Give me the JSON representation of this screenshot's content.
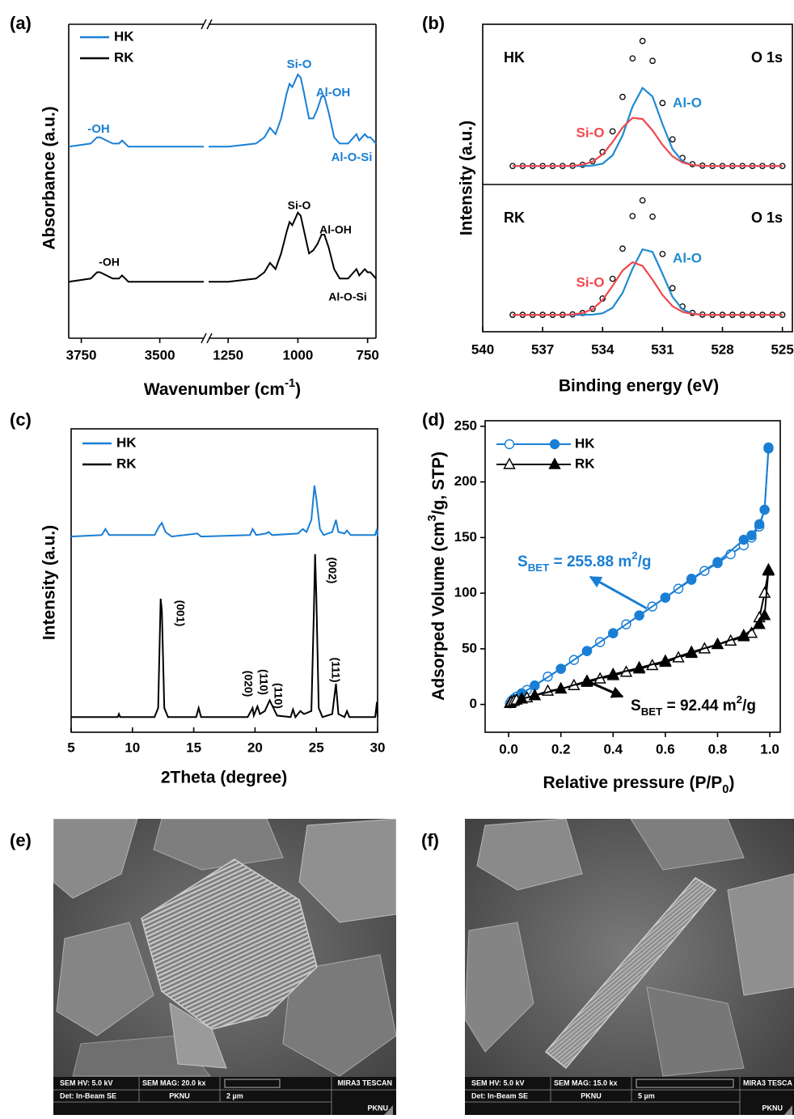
{
  "chart_data": [
    {
      "type": "spectrum",
      "panel_label": "(a)",
      "x_label": [
        {
          "text": "Wavenumber (cm"
        },
        {
          "sup": "-1"
        },
        {
          "text": ")"
        }
      ],
      "y_label": "Absorbance (a.u.)",
      "x_segments": [
        [
          3790,
          3360
        ],
        [
          1320,
          720
        ]
      ],
      "xticks": [
        3750,
        3500,
        1250,
        1000,
        750
      ],
      "ylim": [
        0,
        100
      ],
      "legend": "upper left",
      "x": [
        3790,
        3720,
        3700,
        3690,
        3670,
        3650,
        3630,
        3620,
        3610,
        3600,
        3550,
        3500,
        3450,
        3400,
        3360,
        1320,
        1250,
        1150,
        1120,
        1100,
        1080,
        1060,
        1040,
        1030,
        1020,
        1010,
        1000,
        990,
        980,
        960,
        945,
        930,
        915,
        905,
        890,
        870,
        850,
        820,
        800,
        790,
        780,
        760,
        750,
        740,
        720
      ],
      "series": [
        {
          "name": "HK",
          "color": "#1a7fd4",
          "annotations": [
            "-OH",
            "Si-O",
            "Al-OH",
            "Al-O-Si"
          ],
          "values": [
            61,
            62,
            64,
            64,
            63,
            62,
            62,
            63,
            62,
            61,
            61,
            61,
            61,
            61,
            61,
            61,
            61,
            62,
            64,
            67,
            65,
            70,
            78,
            81,
            80,
            82,
            84,
            83,
            79,
            70,
            70,
            73,
            77,
            77,
            72,
            64,
            62,
            62,
            64,
            65,
            63,
            65,
            64,
            64,
            62
          ]
        },
        {
          "name": "RK",
          "color": "#000000",
          "annotations": [
            "-OH",
            "Si-O",
            "Al-OH",
            "Al-O-Si"
          ],
          "values": [
            18,
            19,
            21,
            21,
            20,
            19,
            19,
            20,
            19,
            18,
            18,
            18,
            18,
            18,
            18,
            18,
            18,
            19,
            21,
            24,
            22,
            27,
            34,
            37,
            36,
            38,
            40,
            39,
            35,
            27,
            28,
            30,
            33,
            33,
            29,
            22,
            19,
            19,
            21,
            22,
            20,
            22,
            21,
            21,
            19
          ]
        }
      ]
    },
    {
      "type": "peak_fit",
      "panel_label": "(b)",
      "x_label": "Binding energy (eV)",
      "y_label": "Intensity (a.u.)",
      "xlim": [
        540,
        524.5
      ],
      "xticks": [
        540,
        537,
        534,
        531,
        528,
        525
      ],
      "ylim": [
        -15,
        110
      ],
      "x": [
        538.5,
        538,
        537.5,
        537,
        536.5,
        536,
        535.5,
        535,
        534.5,
        534,
        533.5,
        533,
        532.5,
        532,
        531.5,
        531,
        530.5,
        530,
        529.5,
        529,
        528.5,
        528,
        527.5,
        527,
        526.5,
        526,
        525.5,
        525
      ],
      "subplots": [
        {
          "sample": "HK",
          "core_level": "O 1s",
          "series": [
            {
              "color": "#000000",
              "marker": "open-circle",
              "values": [
                0,
                0,
                0,
                0,
                0,
                0,
                0.2,
                1.0,
                3.9,
                11.4,
                28.2,
                56.2,
                87.5,
                101.7,
                85.5,
                51.2,
                21.7,
                6.6,
                1.5,
                0.3,
                0,
                0,
                0,
                0,
                0,
                0,
                0,
                0
              ]
            },
            {
              "name": "Al-O",
              "color": "#1f8ad0",
              "values": [
                0,
                0,
                0,
                0,
                0,
                0,
                0,
                0,
                0.3,
                2.0,
                8.7,
                24.9,
                48.3,
                63.5,
                56.5,
                34.0,
                13.8,
                3.8,
                0.7,
                0.1,
                0,
                0,
                0,
                0,
                0,
                0,
                0,
                0
              ]
            },
            {
              "name": "Si-O",
              "color": "#f0484f",
              "values": [
                0,
                0,
                0,
                0,
                0,
                0,
                0.2,
                1.0,
                3.6,
                9.4,
                19.5,
                31.3,
                39.2,
                38.2,
                29.0,
                17.2,
                7.9,
                2.8,
                0.8,
                0.2,
                0,
                0,
                0,
                0,
                0,
                0,
                0,
                0
              ]
            }
          ]
        },
        {
          "sample": "RK",
          "core_level": "O 1s",
          "series": [
            {
              "color": "#000000",
              "marker": "open-circle",
              "values": [
                0,
                0,
                0,
                0,
                0,
                0,
                0.4,
                1.6,
                5.4,
                14.5,
                32.0,
                58.8,
                87.7,
                101.6,
                87.2,
                54.0,
                23.7,
                7.4,
                1.7,
                0.2,
                0,
                0,
                0,
                0,
                0,
                0,
                0,
                0
              ]
            },
            {
              "name": "Al-O",
              "color": "#1f8ad0",
              "values": [
                0,
                0,
                0,
                0,
                0,
                0,
                0,
                0,
                0.2,
                1.4,
                6.3,
                19.5,
                40.9,
                58.2,
                55.9,
                36.4,
                16.0,
                4.8,
                1.0,
                0.1,
                0,
                0,
                0,
                0,
                0,
                0,
                0,
                0
              ]
            },
            {
              "name": "Si-O",
              "color": "#f0484f",
              "values": [
                0,
                0,
                0,
                0,
                0,
                0,
                0.4,
                1.6,
                5.2,
                13.1,
                25.7,
                39.3,
                46.8,
                43.4,
                31.3,
                17.6,
                7.7,
                2.6,
                0.7,
                0.1,
                0,
                0,
                0,
                0,
                0,
                0,
                0,
                0
              ]
            }
          ]
        }
      ]
    },
    {
      "type": "line",
      "panel_label": "(c)",
      "x_label": "2Theta (degree)",
      "y_label": "Intensity (a.u.)",
      "xlim": [
        5,
        30
      ],
      "xticks": [
        5,
        10,
        15,
        20,
        25,
        30
      ],
      "ylim": [
        0,
        100
      ],
      "legend": "upper left",
      "peak_labels": [
        "(001)",
        "(020)",
        "(110)",
        "(110)",
        "(002)",
        "(111)"
      ],
      "series": [
        {
          "name": "HK",
          "color": "#1a7fd4",
          "x": [
            5,
            7.5,
            7.8,
            8.1,
            11.8,
            12.2,
            12.4,
            12.7,
            13.2,
            15.3,
            15.6,
            19.6,
            19.8,
            20.1,
            20.9,
            21.1,
            21.4,
            23.5,
            23.9,
            24.2,
            24.6,
            24.85,
            25.0,
            25.3,
            25.6,
            26.3,
            26.6,
            26.8,
            27.3,
            27.5,
            27.8,
            29.8,
            29.95,
            30
          ],
          "values": [
            64.5,
            65,
            67,
            65,
            65,
            68,
            69,
            66,
            64.5,
            65.5,
            64.5,
            65,
            67,
            65,
            65.5,
            66,
            65,
            65.5,
            67,
            66,
            70,
            81.3,
            77,
            67,
            65,
            66,
            70,
            66,
            65.5,
            66.5,
            65,
            65,
            67,
            64.5
          ]
        },
        {
          "name": "RK",
          "color": "#000000",
          "x": [
            5,
            8.8,
            8.9,
            9.0,
            11.8,
            12.1,
            12.3,
            12.4,
            12.6,
            12.9,
            15.2,
            15.4,
            15.6,
            19.4,
            19.8,
            19.9,
            20.2,
            20.4,
            20.8,
            21.2,
            21.5,
            21.8,
            22.9,
            23.1,
            23.3,
            23.7,
            24.0,
            24.6,
            24.8,
            24.9,
            25.0,
            25.2,
            25.5,
            26.3,
            26.6,
            26.8,
            27.3,
            27.5,
            27.7,
            29.8,
            29.95,
            30
          ],
          "values": [
            5,
            5,
            6,
            5,
            5,
            8,
            44,
            40,
            8,
            5,
            5,
            8,
            5,
            5,
            8,
            5.5,
            8.5,
            6,
            7,
            10.5,
            8,
            5.5,
            5,
            7.5,
            5,
            7,
            6,
            7,
            40,
            58.7,
            45,
            8,
            5,
            6,
            16,
            6,
            5,
            7,
            5,
            5,
            10,
            5
          ]
        }
      ]
    },
    {
      "type": "isotherm",
      "panel_label": "(d)",
      "x_label": [
        {
          "text": "Relative pressure (P/P"
        },
        {
          "sub": "0"
        },
        {
          "text": ")"
        }
      ],
      "y_label": [
        {
          "text": "Adsorped Volume (cm"
        },
        {
          "sup": "3"
        },
        {
          "text": "/g, STP)"
        }
      ],
      "xlim": [
        -0.09,
        1.04
      ],
      "xticks": [
        {
          "value": 0,
          "label": "0.0"
        },
        {
          "value": 0.2,
          "label": "0.2"
        },
        {
          "value": 0.4,
          "label": "0.4"
        },
        {
          "value": 0.6,
          "label": "0.6"
        },
        {
          "value": 0.8,
          "label": "0.8"
        },
        {
          "value": 1,
          "label": "1.0"
        }
      ],
      "ylim": [
        -25,
        255
      ],
      "yticks": [
        0,
        50,
        100,
        150,
        200,
        250
      ],
      "legend": "upper left",
      "series": [
        {
          "name": "HK",
          "color": "#1a7fd4",
          "marker": "circle",
          "bet_label": [
            {
              "text": "S"
            },
            {
              "sub": "BET"
            },
            {
              "text": " = 255.88 m"
            },
            {
              "sup": "2"
            },
            {
              "text": "/g"
            }
          ],
          "adsorption": {
            "x": [
              0.005,
              0.01,
              0.02,
              0.03,
              0.05,
              0.07,
              0.1,
              0.15,
              0.2,
              0.25,
              0.3,
              0.35,
              0.4,
              0.45,
              0.5,
              0.55,
              0.6,
              0.65,
              0.7,
              0.75,
              0.8,
              0.85,
              0.9,
              0.93,
              0.96,
              0.98,
              0.995
            ],
            "values": [
              1,
              3,
              5,
              7,
              10,
              13,
              17,
              25,
              32,
              40,
              48,
              56,
              64,
              72,
              80,
              88,
              96,
              104,
              112,
              120,
              127,
              135,
              143,
              150,
              160,
              175,
              230
            ]
          },
          "desorption": {
            "x": [
              0.995,
              0.98,
              0.96,
              0.93,
              0.9,
              0.8,
              0.7,
              0.6,
              0.5,
              0.4,
              0.3,
              0.2,
              0.1,
              0.05,
              0.02
            ],
            "values": [
              231,
              175,
              162,
              152,
              148,
              128,
              113,
              96,
              80,
              64,
              48,
              32,
              17,
              10,
              5
            ]
          }
        },
        {
          "name": "RK",
          "color": "#000000",
          "marker": "triangle",
          "bet_label": [
            {
              "text": "S"
            },
            {
              "sub": "BET"
            },
            {
              "text": " = 92.44 m"
            },
            {
              "sup": "2"
            },
            {
              "text": "/g"
            }
          ],
          "adsorption": {
            "x": [
              0.005,
              0.01,
              0.02,
              0.03,
              0.05,
              0.07,
              0.1,
              0.15,
              0.2,
              0.25,
              0.3,
              0.35,
              0.4,
              0.45,
              0.5,
              0.55,
              0.6,
              0.65,
              0.7,
              0.75,
              0.8,
              0.85,
              0.9,
              0.93,
              0.96,
              0.98,
              0.995
            ],
            "values": [
              1,
              2,
              3,
              4,
              5,
              6,
              8,
              12,
              14,
              17,
              20,
              23,
              26,
              29,
              32,
              35,
              38,
              42,
              46,
              50,
              54,
              57,
              61,
              64,
              78,
              100,
              120
            ]
          },
          "desorption": {
            "x": [
              0.995,
              0.98,
              0.96,
              0.9,
              0.8,
              0.7,
              0.6,
              0.5,
              0.4,
              0.3,
              0.2,
              0.1,
              0.05
            ],
            "values": [
              121,
              80,
              72,
              62,
              54,
              47,
              39,
              33,
              27,
              21,
              14,
              8,
              5
            ]
          }
        }
      ]
    }
  ],
  "images": [
    {
      "panel_label": "(e)",
      "info": {
        "hv": "SEM HV: 5.0 kV",
        "mag": "SEM MAG: 20.0 kx",
        "vendor": "MIRA3 TESCAN",
        "det": "Det: In-Beam SE",
        "lab": "PKNU",
        "scale": "2 µm",
        "logo": "PKNU"
      }
    },
    {
      "panel_label": "(f)",
      "info": {
        "hv": "SEM HV: 5.0 kV",
        "mag": "SEM MAG: 15.0 kx",
        "vendor": "MIRA3 TESCA",
        "det": "Det: In-Beam SE",
        "lab": "PKNU",
        "scale": "5 µm",
        "logo": "PKNU"
      }
    }
  ]
}
